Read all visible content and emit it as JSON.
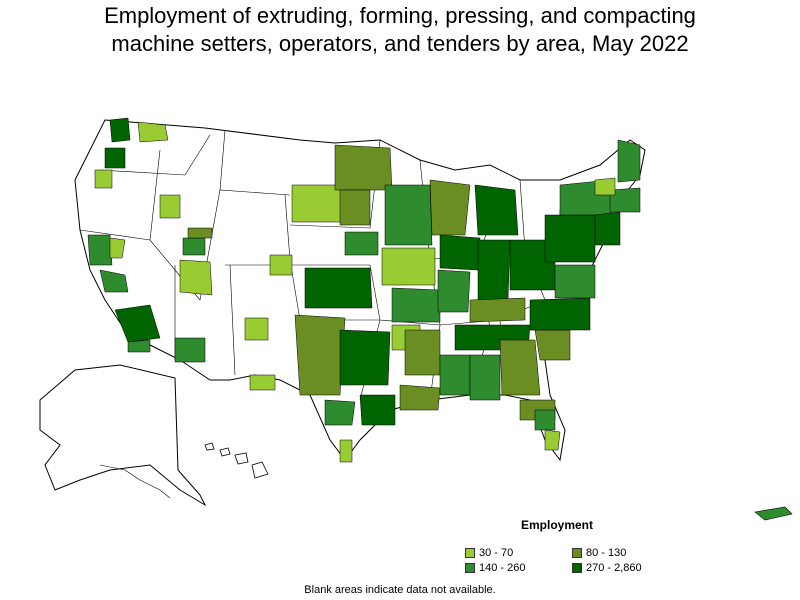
{
  "title_line1": "Employment of extruding, forming, pressing, and compacting",
  "title_line2": "machine setters, operators, and tenders by area, May 2022",
  "legend": {
    "title": "Employment",
    "bins": [
      {
        "label": "30 - 70",
        "color": "#99cc33"
      },
      {
        "label": "80 - 130",
        "color": "#6b8e23"
      },
      {
        "label": "140 - 260",
        "color": "#2e8b2e"
      },
      {
        "label": "270 - 2,860",
        "color": "#006400"
      }
    ]
  },
  "footnote": "Blank areas indicate data not available.",
  "colors": {
    "no_data": "#ffffff",
    "border": "#000000"
  }
}
